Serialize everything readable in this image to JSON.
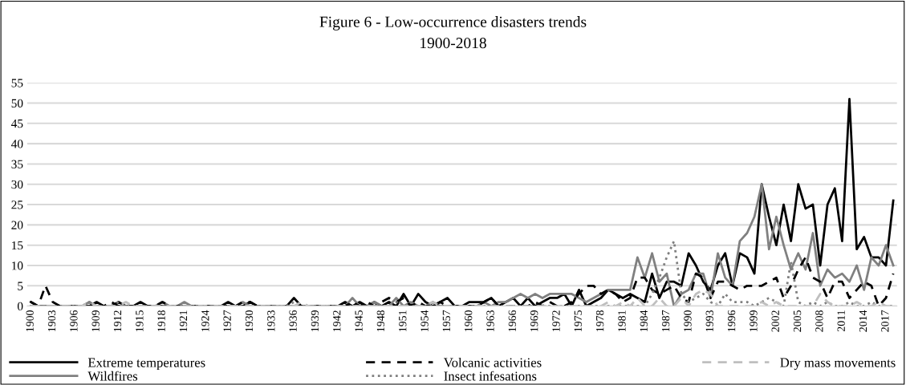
{
  "chart_data": {
    "type": "line",
    "title": "Figure 6 - Low-occurrence disasters trends",
    "subtitle": "1900-2018",
    "categories": [
      "1900",
      null,
      null,
      "1903",
      null,
      null,
      "1906",
      null,
      null,
      "1909",
      null,
      null,
      "1912",
      null,
      null,
      "1915",
      null,
      null,
      "1918",
      null,
      null,
      "1921",
      null,
      null,
      "1924",
      null,
      null,
      "1927",
      null,
      null,
      "1930",
      null,
      null,
      "1933",
      null,
      null,
      "1936",
      null,
      null,
      "1939",
      null,
      null,
      "1942",
      null,
      null,
      "1945",
      null,
      null,
      "1948",
      null,
      null,
      "1951",
      null,
      null,
      "1954",
      null,
      null,
      "1957",
      null,
      null,
      "1960",
      null,
      null,
      "1963",
      null,
      null,
      "1966",
      null,
      null,
      "1969",
      null,
      null,
      "1972",
      null,
      null,
      "1975",
      null,
      null,
      "1978",
      null,
      null,
      "1981",
      null,
      null,
      "1984",
      null,
      null,
      "1987",
      null,
      null,
      "1990",
      null,
      null,
      "1993",
      null,
      null,
      "1996",
      null,
      null,
      "1999",
      null,
      null,
      "2002",
      null,
      null,
      "2005",
      null,
      null,
      "2008",
      null,
      null,
      "2011",
      null,
      null,
      "2014",
      null,
      null,
      "2017",
      null
    ],
    "series": [
      {
        "name": "Extreme temperatures",
        "color": "#000000",
        "line_style": "solid",
        "values": [
          1,
          0,
          0,
          0,
          0,
          0,
          0,
          0,
          0,
          1,
          0,
          0,
          1,
          0,
          0,
          1,
          0,
          0,
          0,
          0,
          0,
          0,
          0,
          0,
          0,
          0,
          0,
          1,
          0,
          0,
          1,
          0,
          0,
          0,
          0,
          0,
          2,
          0,
          0,
          0,
          0,
          0,
          0,
          1,
          0,
          1,
          0,
          1,
          0,
          1,
          0,
          3,
          0,
          3,
          1,
          0,
          1,
          2,
          0,
          0,
          1,
          1,
          1,
          2,
          0,
          1,
          2,
          0,
          2,
          0,
          1,
          2,
          2,
          3,
          0,
          4,
          0,
          1,
          2,
          4,
          3,
          2,
          3,
          2,
          1,
          8,
          2,
          6,
          6,
          5,
          13,
          10,
          6,
          4,
          10,
          13,
          5,
          13,
          12,
          8,
          30,
          22,
          15,
          25,
          16,
          30,
          24,
          25,
          10,
          25,
          29,
          16,
          51,
          14,
          17,
          12,
          12,
          10,
          26
        ]
      },
      {
        "name": "Wildfires",
        "color": "#808080",
        "line_style": "solid",
        "values": [
          0,
          0,
          0,
          0,
          0,
          0,
          0,
          0,
          1,
          0,
          0,
          0,
          0,
          0,
          0,
          0,
          0,
          0,
          1,
          0,
          0,
          1,
          0,
          0,
          0,
          0,
          0,
          0,
          0,
          1,
          0,
          0,
          0,
          0,
          0,
          0,
          0,
          0,
          0,
          0,
          0,
          0,
          0,
          0,
          2,
          0,
          0,
          1,
          0,
          0,
          2,
          0,
          1,
          0,
          0,
          1,
          0,
          0,
          0,
          0,
          0,
          0,
          1,
          0,
          1,
          1,
          2,
          3,
          2,
          3,
          2,
          3,
          3,
          3,
          3,
          2,
          1,
          2,
          3,
          4,
          4,
          4,
          4,
          12,
          7,
          13,
          6,
          8,
          0,
          3,
          4,
          8,
          8,
          2,
          13,
          7,
          5,
          16,
          18,
          22,
          30,
          14,
          22,
          15,
          9,
          13,
          9,
          18,
          5,
          9,
          7,
          8,
          6,
          10,
          4,
          12,
          10,
          15,
          10
        ]
      },
      {
        "name": "Volcanic activities",
        "color": "#000000",
        "line_style": "dashed",
        "values": [
          1,
          0,
          5,
          1,
          0,
          0,
          0,
          0,
          0,
          0,
          0,
          1,
          0,
          0,
          0,
          0,
          0,
          0,
          1,
          0,
          0,
          0,
          0,
          0,
          0,
          0,
          0,
          0,
          0,
          1,
          1,
          0,
          0,
          0,
          0,
          0,
          0,
          0,
          0,
          0,
          0,
          0,
          0,
          0,
          1,
          0,
          1,
          0,
          1,
          2,
          1,
          2,
          0,
          1,
          0,
          0,
          1,
          0,
          0,
          0,
          0,
          0,
          1,
          2,
          0,
          0,
          0,
          0,
          0,
          1,
          0,
          1,
          0,
          0,
          1,
          3,
          5,
          5,
          3,
          4,
          3,
          1,
          2,
          7,
          7,
          4,
          3,
          4,
          5,
          2,
          1,
          8,
          7,
          2,
          6,
          6,
          5,
          4,
          5,
          5,
          5,
          6,
          7,
          2,
          5,
          9,
          12,
          7,
          6,
          2,
          6,
          6,
          2,
          4,
          6,
          5,
          0,
          2,
          8
        ]
      },
      {
        "name": "Insect infesations",
        "color": "#7f7f7f",
        "line_style": "dotted",
        "values": [
          0,
          0,
          0,
          0,
          0,
          0,
          0,
          0,
          1,
          0,
          0,
          0,
          1,
          0,
          0,
          0,
          0,
          0,
          0,
          0,
          0,
          0,
          0,
          0,
          0,
          0,
          0,
          0,
          0,
          0,
          0,
          0,
          0,
          0,
          0,
          0,
          1,
          0,
          0,
          0,
          0,
          0,
          0,
          0,
          0,
          0,
          0,
          0,
          0,
          0,
          1,
          0,
          0,
          0,
          0,
          0,
          0,
          0,
          0,
          0,
          0,
          0,
          0,
          0,
          0,
          0,
          0,
          0,
          0,
          0,
          0,
          0,
          0,
          0,
          0,
          0,
          0,
          0,
          0,
          0,
          0,
          0,
          0,
          0,
          0,
          3,
          7,
          12,
          16,
          3,
          1,
          2,
          3,
          1,
          0,
          3,
          1,
          1,
          1,
          0,
          1,
          2,
          1,
          0,
          11,
          1,
          0,
          1,
          0,
          1,
          0,
          0,
          1,
          0,
          0,
          1,
          0,
          0,
          0
        ]
      },
      {
        "name": "Dry mass movements",
        "color": "#bfbfbf",
        "line_style": "dashed",
        "values": [
          0,
          0,
          0,
          0,
          0,
          0,
          0,
          0,
          1,
          0,
          0,
          0,
          0,
          1,
          0,
          0,
          0,
          0,
          0,
          0,
          0,
          0,
          0,
          0,
          0,
          0,
          0,
          0,
          0,
          0,
          0,
          0,
          0,
          0,
          0,
          0,
          0,
          1,
          0,
          0,
          0,
          0,
          0,
          0,
          0,
          0,
          0,
          0,
          0,
          0,
          0,
          0,
          0,
          0,
          0,
          1,
          0,
          0,
          0,
          0,
          0,
          0,
          0,
          0,
          0,
          0,
          0,
          0,
          0,
          0,
          0,
          0,
          0,
          0,
          0,
          0,
          0,
          0,
          0,
          1,
          0,
          1,
          0,
          2,
          0,
          0,
          2,
          0,
          0,
          2,
          0,
          3,
          4,
          3,
          0,
          0,
          0,
          0,
          0,
          0,
          1,
          0,
          1,
          0,
          0,
          0,
          0,
          0,
          3,
          1,
          0,
          0,
          0,
          1,
          0,
          0,
          1,
          0,
          0
        ]
      }
    ],
    "ylim": [
      0,
      55
    ],
    "yticks": [
      0,
      5,
      10,
      15,
      20,
      25,
      30,
      35,
      40,
      45,
      50,
      55
    ],
    "grid": "y",
    "legend": "bottom",
    "marker": "none"
  }
}
